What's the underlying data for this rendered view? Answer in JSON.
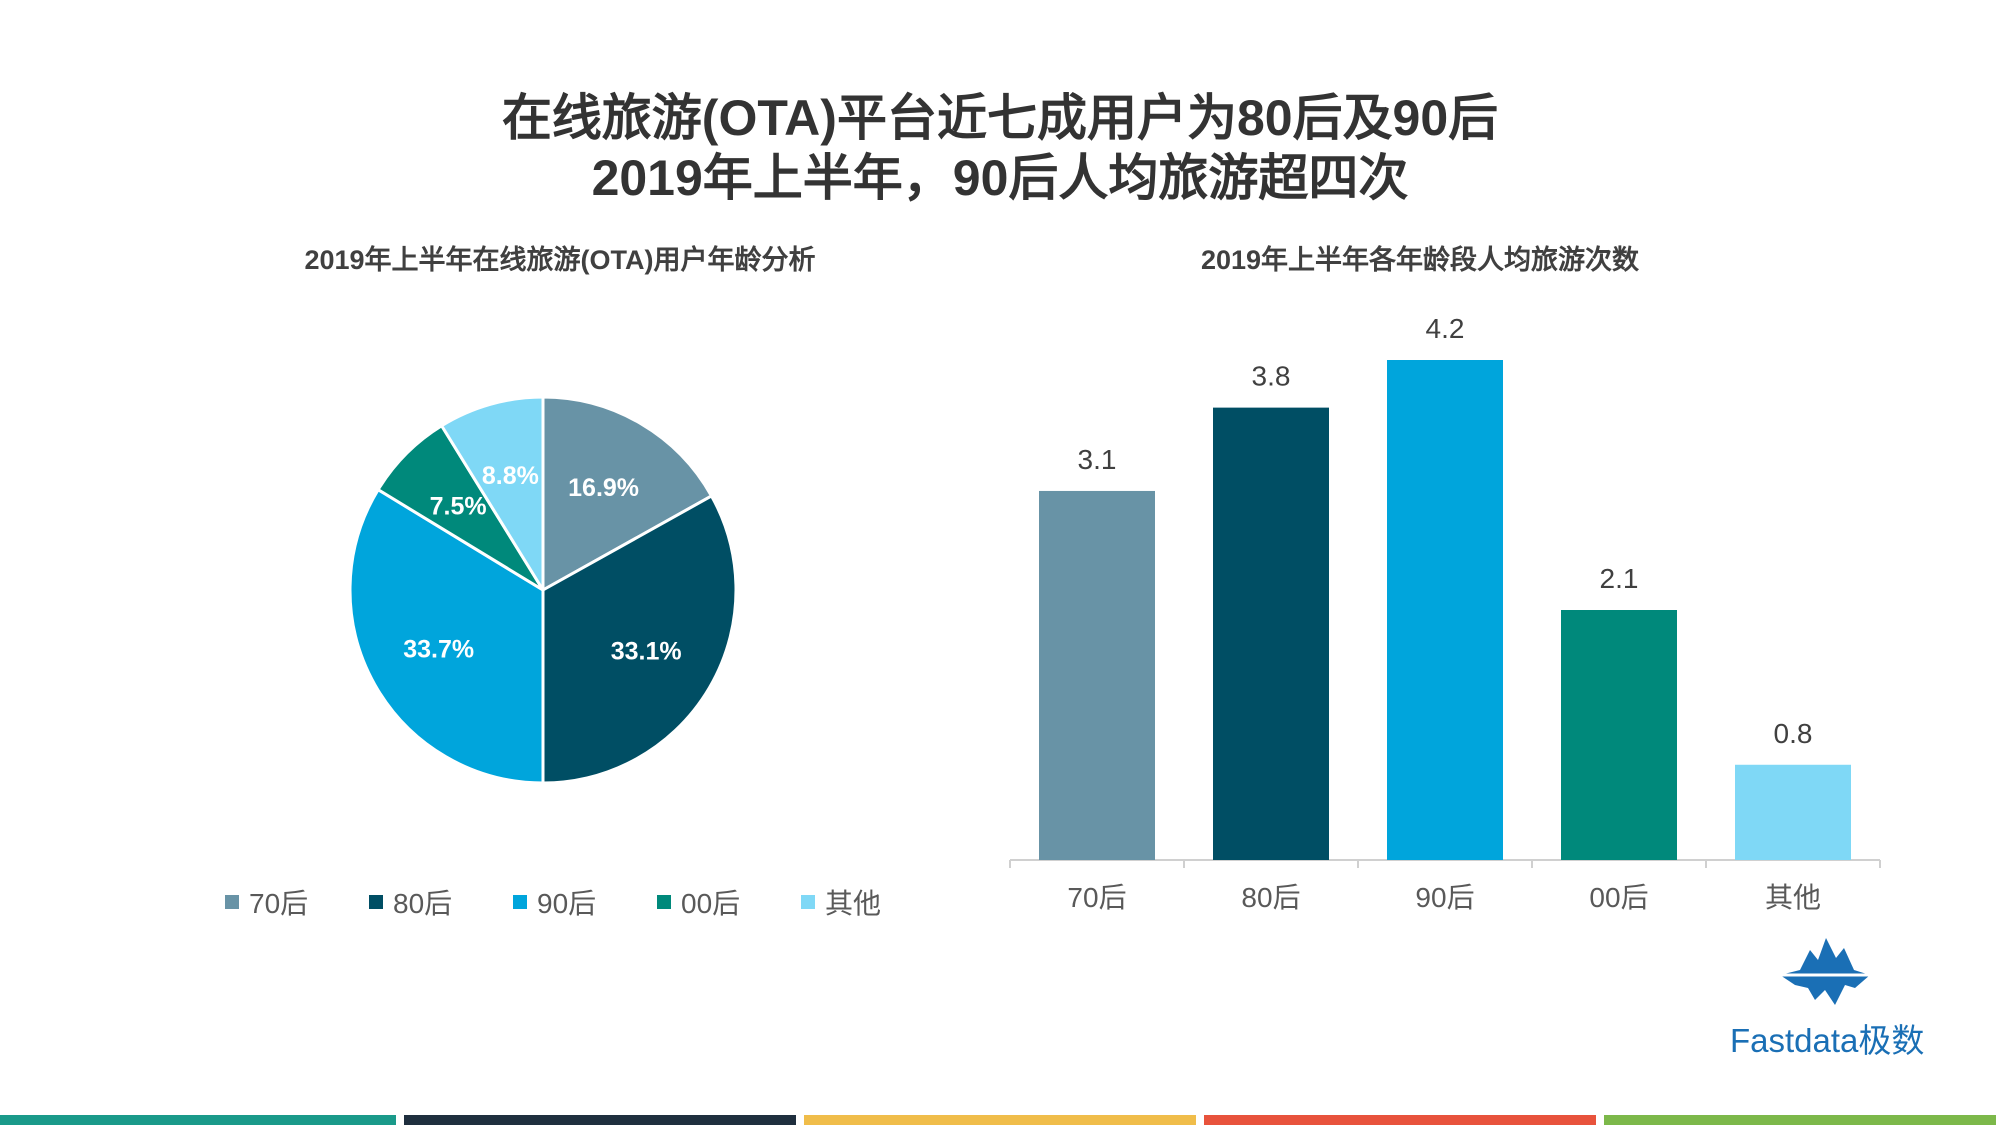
{
  "title": {
    "line1": "在线旅游(OTA)平台近七成用户为80后及90后",
    "line2": "2019年上半年，90后人均旅游超四次"
  },
  "colors": {
    "c70": "#6893a6",
    "c80": "#004e64",
    "c90": "#00a5dc",
    "c00": "#00897b",
    "cother": "#7fd8f6",
    "footer": [
      "#1a9a8a",
      "#1f2f3e",
      "#f0bd4a",
      "#e8533c",
      "#7cb84a"
    ]
  },
  "logo": {
    "text": "Fastdata极数",
    "icon": "iceberg-icon"
  },
  "chart_data": [
    {
      "type": "pie",
      "title": "2019年上半年在线旅游(OTA)用户年龄分析",
      "categories": [
        "70后",
        "80后",
        "90后",
        "00后",
        "其他"
      ],
      "values": [
        16.9,
        33.1,
        33.7,
        7.5,
        8.8
      ],
      "labels": [
        "16.9%",
        "33.1%",
        "33.7%",
        "7.5%",
        "8.8%"
      ],
      "legend": "bottom"
    },
    {
      "type": "bar",
      "title": "2019年上半年各年龄段人均旅游次数",
      "categories": [
        "70后",
        "80后",
        "90后",
        "00后",
        "其他"
      ],
      "values": [
        3.1,
        3.8,
        4.2,
        2.1,
        0.8
      ],
      "labels": [
        "3.1",
        "3.8",
        "4.2",
        "2.1",
        "0.8"
      ],
      "ylim": [
        0,
        5
      ]
    }
  ]
}
